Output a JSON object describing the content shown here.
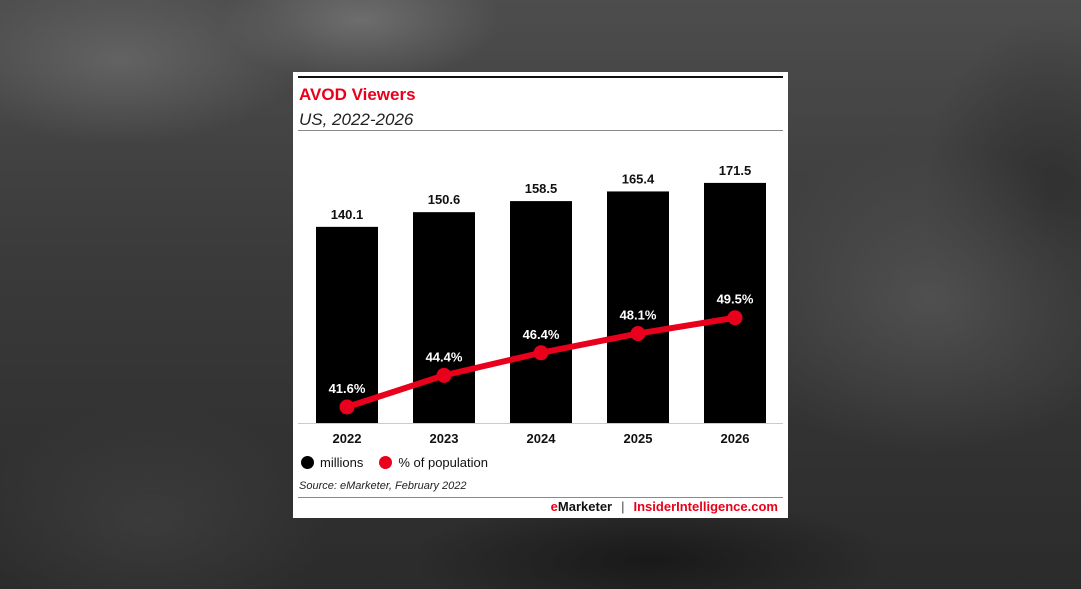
{
  "chart_data": {
    "type": "bar",
    "title": "AVOD Viewers",
    "subtitle": "US, 2022-2026",
    "categories": [
      "2022",
      "2023",
      "2024",
      "2025",
      "2026"
    ],
    "series": [
      {
        "name": "millions",
        "type": "bar",
        "color": "#000000",
        "values": [
          140.1,
          150.6,
          158.5,
          165.4,
          171.5
        ],
        "labels": [
          "140.1",
          "150.6",
          "158.5",
          "165.4",
          "171.5"
        ]
      },
      {
        "name": "% of population",
        "type": "line",
        "color": "#e8001c",
        "values": [
          41.6,
          44.4,
          46.4,
          48.1,
          49.5
        ],
        "labels": [
          "41.6%",
          "44.4%",
          "46.4%",
          "48.1%",
          "49.5%"
        ]
      }
    ],
    "grid": false,
    "legend_position": "bottom-left"
  },
  "source": "Source: eMarketer, February 2022",
  "footer": {
    "brand_e": "e",
    "brand_rest": "Marketer",
    "separator": "|",
    "site": "InsiderIntelligence.com"
  }
}
